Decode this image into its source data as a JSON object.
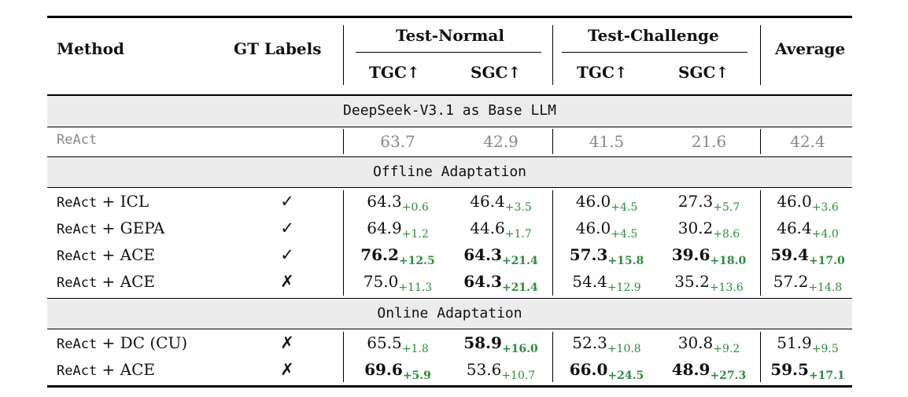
{
  "headers": {
    "method": "Method",
    "gt_labels": "GT Labels",
    "test_normal": "Test-Normal",
    "test_challenge": "Test-Challenge",
    "average": "Average",
    "tgc": "TGC↑",
    "sgc": "SGC↑"
  },
  "sections": {
    "base": "DeepSeek-V3.1 as Base LLM",
    "offline": "Offline Adaptation",
    "online": "Online Adaptation"
  },
  "baseline": {
    "method": "ReAct",
    "values": [
      "63.7",
      "42.9",
      "41.5",
      "21.6",
      "42.4"
    ]
  },
  "rows": [
    {
      "method_mono": "ReAct",
      "method_rest": " + ICL",
      "gt": "✓",
      "cells": [
        {
          "v": "64.3",
          "d": "+0.6",
          "bold": false
        },
        {
          "v": "46.4",
          "d": "+3.5",
          "bold": false
        },
        {
          "v": "46.0",
          "d": "+4.5",
          "bold": false
        },
        {
          "v": "27.3",
          "d": "+5.7",
          "bold": false
        },
        {
          "v": "46.0",
          "d": "+3.6",
          "bold": false
        }
      ]
    },
    {
      "method_mono": "ReAct",
      "method_rest": " + GEPA",
      "gt": "✓",
      "cells": [
        {
          "v": "64.9",
          "d": "+1.2",
          "bold": false
        },
        {
          "v": "44.6",
          "d": "+1.7",
          "bold": false
        },
        {
          "v": "46.0",
          "d": "+4.5",
          "bold": false
        },
        {
          "v": "30.2",
          "d": "+8.6",
          "bold": false
        },
        {
          "v": "46.4",
          "d": "+4.0",
          "bold": false
        }
      ]
    },
    {
      "method_mono": "ReAct",
      "method_rest": " + ACE",
      "gt": "✓",
      "cells": [
        {
          "v": "76.2",
          "d": "+12.5",
          "bold": true
        },
        {
          "v": "64.3",
          "d": "+21.4",
          "bold": true
        },
        {
          "v": "57.3",
          "d": "+15.8",
          "bold": true
        },
        {
          "v": "39.6",
          "d": "+18.0",
          "bold": true
        },
        {
          "v": "59.4",
          "d": "+17.0",
          "bold": true
        }
      ]
    },
    {
      "method_mono": "ReAct",
      "method_rest": " + ACE",
      "gt": "✗",
      "cells": [
        {
          "v": "75.0",
          "d": "+11.3",
          "bold": false
        },
        {
          "v": "64.3",
          "d": "+21.4",
          "bold": true
        },
        {
          "v": "54.4",
          "d": "+12.9",
          "bold": false
        },
        {
          "v": "35.2",
          "d": "+13.6",
          "bold": false
        },
        {
          "v": "57.2",
          "d": "+14.8",
          "bold": false
        }
      ]
    },
    {
      "method_mono": "ReAct",
      "method_rest": " + DC (CU)",
      "gt": "✗",
      "cells": [
        {
          "v": "65.5",
          "d": "+1.8",
          "bold": false
        },
        {
          "v": "58.9",
          "d": "+16.0",
          "bold": true
        },
        {
          "v": "52.3",
          "d": "+10.8",
          "bold": false
        },
        {
          "v": "30.8",
          "d": "+9.2",
          "bold": false
        },
        {
          "v": "51.9",
          "d": "+9.5",
          "bold": false
        }
      ]
    },
    {
      "method_mono": "ReAct",
      "method_rest": " + ACE",
      "gt": "✗",
      "cells": [
        {
          "v": "69.6",
          "d": "+5.9",
          "bold": true
        },
        {
          "v": "53.6",
          "d": "+10.7",
          "bold": false
        },
        {
          "v": "66.0",
          "d": "+24.5",
          "bold": true
        },
        {
          "v": "48.9",
          "d": "+27.3",
          "bold": true
        },
        {
          "v": "59.5",
          "d": "+17.1",
          "bold": true
        }
      ]
    }
  ]
}
